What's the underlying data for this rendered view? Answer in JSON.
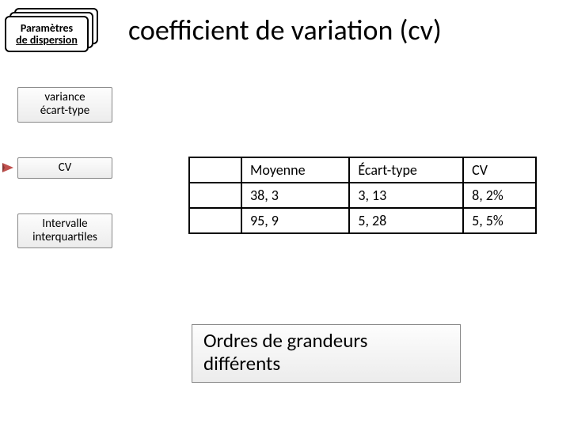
{
  "header": {
    "box_line1": "Paramètres",
    "box_line2": "de dispersion",
    "title": "coefficient de variation (cv)"
  },
  "sidebar": {
    "item1_line1": "variance",
    "item1_line2": "écart-type",
    "item2": "CV",
    "item3_line1": "Intervalle",
    "item3_line2": "interquartiles"
  },
  "table": {
    "columns": [
      "Moyenne",
      "Écart-type",
      "CV"
    ],
    "rows": [
      [
        "38, 3",
        "3, 13",
        "8, 2%"
      ],
      [
        "95, 9",
        "5, 28",
        "5, 5%"
      ]
    ]
  },
  "callout": {
    "line1": "Ordres de grandeurs",
    "line2": "différents"
  }
}
